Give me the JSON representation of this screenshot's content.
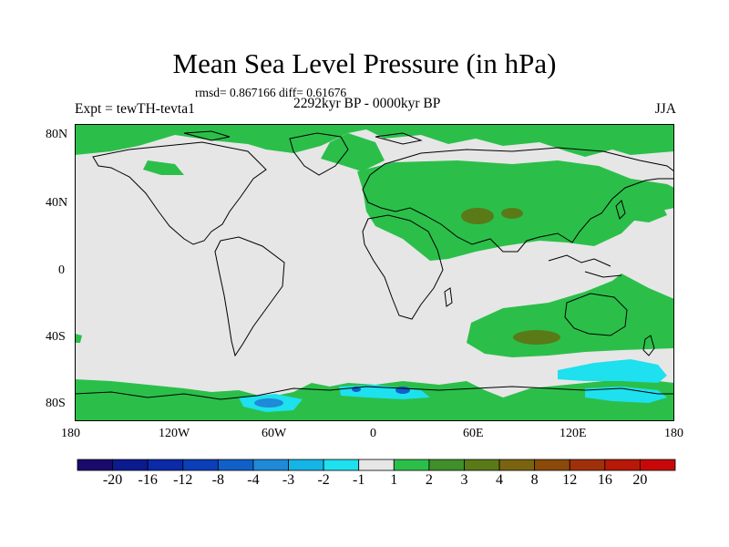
{
  "title": "Mean Sea Level Pressure (in hPa)",
  "stats": "rmsd= 0.867166 diff= 0.61676",
  "experiment": "Expt = tewTH-tevta1",
  "period": "2292kyr BP - 0000kyr BP",
  "season": "JJA",
  "lat_labels": [
    "80N",
    "40N",
    "0",
    "40S",
    "80S"
  ],
  "lon_labels": [
    "180",
    "120W",
    "60W",
    "0",
    "60E",
    "120E",
    "180"
  ],
  "colorbar": {
    "labels": [
      "-20",
      "-16",
      "-12",
      "-8",
      "-4",
      "-3",
      "-2",
      "-1",
      "1",
      "2",
      "3",
      "4",
      "8",
      "12",
      "16",
      "20"
    ],
    "colors": [
      "#1a0a6b",
      "#0b1a8f",
      "#0a2aa8",
      "#0a3fb8",
      "#1060c8",
      "#1e8ad8",
      "#14b4e6",
      "#1ee0ee",
      "#e6e6e6",
      "#2bbf4a",
      "#3f8f2a",
      "#5a7a18",
      "#7a6410",
      "#8a4a0a",
      "#a0300a",
      "#b81808",
      "#c80808"
    ]
  },
  "colors": {
    "land_ocean_neutral": "#e6e6e6",
    "coast": "#000000",
    "green": "#2bbf4a",
    "brown": "#5a7a18",
    "cyan": "#1ee0ee",
    "blue": "#1060c8"
  }
}
